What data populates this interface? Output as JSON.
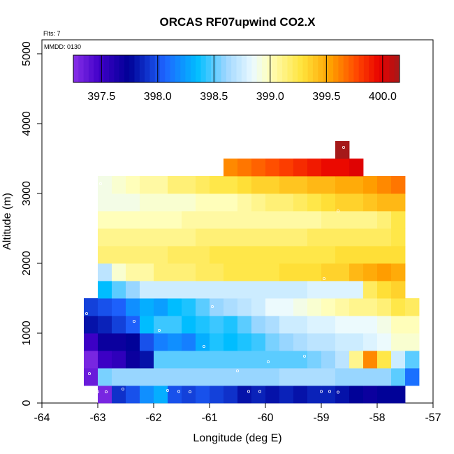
{
  "chart_data": {
    "type": "heatmap",
    "title": "ORCAS RF07upwind CO2.X",
    "flights_note": "Flts: 7",
    "date_note": "MMDD: 0130",
    "xlabel": "Longitude (deg E)",
    "ylabel": "Altitude (m)",
    "xlim": [
      -64,
      -57
    ],
    "ylim": [
      0,
      5200
    ],
    "x_ticks": [
      -64,
      -63,
      -62,
      -61,
      -60,
      -59,
      -58,
      -57
    ],
    "y_ticks": [
      0,
      1000,
      2000,
      3000,
      4000,
      5000
    ],
    "cell_width_deg": 0.25,
    "cell_height_m": 250,
    "colorbar": {
      "min": 397.25,
      "max": 400.15,
      "ticks": [
        397.5,
        398.0,
        398.5,
        399.0,
        399.5,
        400.0
      ],
      "tick_labels": [
        "397.5",
        "398.0",
        "398.5",
        "399.0",
        "399.5",
        "400.0"
      ]
    },
    "rows": [
      {
        "alt": 0,
        "lon_start": -63.0,
        "values": [
          397.3,
          397.9,
          398.0,
          398.2,
          398.3,
          398.0,
          397.95,
          398.0,
          397.95,
          397.9,
          397.8,
          397.85,
          397.8,
          397.85,
          397.8,
          397.85,
          397.85,
          397.8,
          397.75,
          397.7,
          397.75,
          397.75
        ]
      },
      {
        "alt": 250,
        "lon_start": -63.25,
        "values": [
          397.35,
          398.55,
          398.6,
          398.6,
          398.6,
          398.6,
          398.6,
          398.6,
          398.6,
          398.6,
          398.6,
          398.6,
          398.6,
          398.6,
          398.65,
          398.65,
          398.65,
          398.65,
          398.6,
          398.6,
          398.6,
          398.6,
          398.5,
          398.1
        ]
      },
      {
        "alt": 500,
        "lon_start": -63.25,
        "values": [
          397.3,
          397.5,
          397.55,
          397.7,
          397.8,
          398.5,
          398.5,
          398.5,
          398.5,
          398.5,
          398.5,
          398.5,
          398.5,
          398.5,
          398.5,
          398.5,
          398.55,
          398.6,
          398.7,
          399.1,
          399.6,
          399.25,
          398.75,
          398.5
        ]
      },
      {
        "alt": 750,
        "lon_start": -63.25,
        "values": [
          397.5,
          397.7,
          397.7,
          397.75,
          398.0,
          398.15,
          398.2,
          398.15,
          398.3,
          398.4,
          398.35,
          398.4,
          398.45,
          398.55,
          398.6,
          398.65,
          398.7,
          398.7,
          398.75,
          398.75,
          398.8,
          398.85,
          398.95,
          398.95
        ]
      },
      {
        "alt": 1000,
        "lon_start": -63.25,
        "values": [
          397.8,
          397.85,
          397.95,
          398.05,
          398.35,
          398.45,
          398.45,
          398.35,
          398.4,
          398.45,
          398.4,
          398.5,
          398.6,
          398.65,
          398.75,
          398.75,
          398.8,
          398.8,
          398.85,
          398.85,
          398.85,
          398.9,
          399.0,
          399.0
        ]
      },
      {
        "alt": 1250,
        "lon_start": -63.25,
        "values": [
          397.95,
          398.0,
          398.05,
          398.2,
          398.3,
          398.25,
          398.35,
          398.4,
          398.5,
          398.6,
          398.65,
          398.7,
          398.75,
          398.85,
          398.85,
          398.9,
          398.95,
          399.0,
          399.05,
          399.1,
          399.1,
          399.15,
          399.25,
          399.2
        ]
      },
      {
        "alt": 1500,
        "lon_start": -63.0,
        "values": [
          398.35,
          398.5,
          398.6,
          398.75,
          398.75,
          398.75,
          398.75,
          398.75,
          398.75,
          398.75,
          398.75,
          398.75,
          398.75,
          398.75,
          398.75,
          398.8,
          398.8,
          398.8,
          398.8,
          399.2,
          399.3,
          399.35
        ]
      },
      {
        "alt": 1750,
        "lon_start": -63.0,
        "values": [
          398.7,
          398.95,
          399.05,
          399.05,
          399.15,
          399.15,
          399.15,
          399.2,
          399.2,
          399.25,
          399.25,
          399.25,
          399.25,
          399.3,
          399.3,
          399.3,
          399.35,
          399.35,
          399.45,
          399.5,
          399.55,
          399.5
        ]
      },
      {
        "alt": 2000,
        "lon_start": -63.0,
        "values": [
          399.15,
          399.15,
          399.15,
          399.15,
          399.15,
          399.2,
          399.2,
          399.2,
          399.25,
          399.25,
          399.25,
          399.25,
          399.25,
          399.25,
          399.25,
          399.25,
          399.25,
          399.3,
          399.3,
          399.3,
          399.3,
          399.3
        ]
      },
      {
        "alt": 2250,
        "lon_start": -63.0,
        "values": [
          399.1,
          399.1,
          399.1,
          399.1,
          399.1,
          399.1,
          399.1,
          399.15,
          399.15,
          399.15,
          399.15,
          399.15,
          399.15,
          399.15,
          399.15,
          399.2,
          399.2,
          399.2,
          399.2,
          399.2,
          399.2,
          399.25
        ]
      },
      {
        "alt": 2500,
        "lon_start": -63.0,
        "values": [
          399.0,
          399.0,
          399.0,
          399.0,
          399.0,
          399.0,
          399.05,
          399.05,
          399.05,
          399.05,
          399.05,
          399.05,
          399.05,
          399.05,
          399.05,
          399.05,
          399.1,
          399.1,
          399.1,
          399.1,
          399.15,
          399.25
        ]
      },
      {
        "alt": 2750,
        "lon_start": -63.0,
        "values": [
          398.9,
          398.9,
          398.9,
          398.95,
          398.95,
          398.95,
          398.95,
          399.0,
          399.0,
          399.0,
          399.05,
          399.1,
          399.15,
          399.15,
          399.2,
          399.25,
          399.3,
          399.35,
          399.35,
          399.4,
          399.45,
          399.45
        ]
      },
      {
        "alt": 3000,
        "lon_start": -63.0,
        "values": [
          398.9,
          398.95,
          399.0,
          399.05,
          399.05,
          399.15,
          399.15,
          399.2,
          399.25,
          399.25,
          399.3,
          399.35,
          399.35,
          399.4,
          399.4,
          399.45,
          399.45,
          399.5,
          399.5,
          399.55,
          399.6,
          399.65
        ]
      },
      {
        "alt": 3250,
        "lon_start": -60.75,
        "values": [
          399.6,
          399.65,
          399.7,
          399.75,
          399.8,
          399.85,
          399.9,
          399.95,
          399.95,
          400.0
        ]
      },
      {
        "alt": 3500,
        "lon_start": -58.75,
        "values": [
          400.15
        ]
      }
    ],
    "samples": [
      {
        "lon": -63.05,
        "alt": 160
      },
      {
        "lon": -63.0,
        "alt": 160
      },
      {
        "lon": -62.85,
        "alt": 160
      },
      {
        "lon": -62.55,
        "alt": 200
      },
      {
        "lon": -61.75,
        "alt": 180
      },
      {
        "lon": -61.55,
        "alt": 165
      },
      {
        "lon": -61.35,
        "alt": 160
      },
      {
        "lon": -60.3,
        "alt": 165
      },
      {
        "lon": -60.1,
        "alt": 165
      },
      {
        "lon": -59.0,
        "alt": 165
      },
      {
        "lon": -58.85,
        "alt": 165
      },
      {
        "lon": -58.7,
        "alt": 155
      },
      {
        "lon": -63.15,
        "alt": 420
      },
      {
        "lon": -60.5,
        "alt": 460
      },
      {
        "lon": -59.95,
        "alt": 590
      },
      {
        "lon": -59.3,
        "alt": 670
      },
      {
        "lon": -61.1,
        "alt": 810
      },
      {
        "lon": -61.9,
        "alt": 1040
      },
      {
        "lon": -63.2,
        "alt": 1280
      },
      {
        "lon": -62.35,
        "alt": 1170
      },
      {
        "lon": -60.95,
        "alt": 1380
      },
      {
        "lon": -58.95,
        "alt": 1780
      },
      {
        "lon": -58.7,
        "alt": 2750
      },
      {
        "lon": -62.95,
        "alt": 3140
      },
      {
        "lon": -58.6,
        "alt": 3660
      }
    ]
  }
}
